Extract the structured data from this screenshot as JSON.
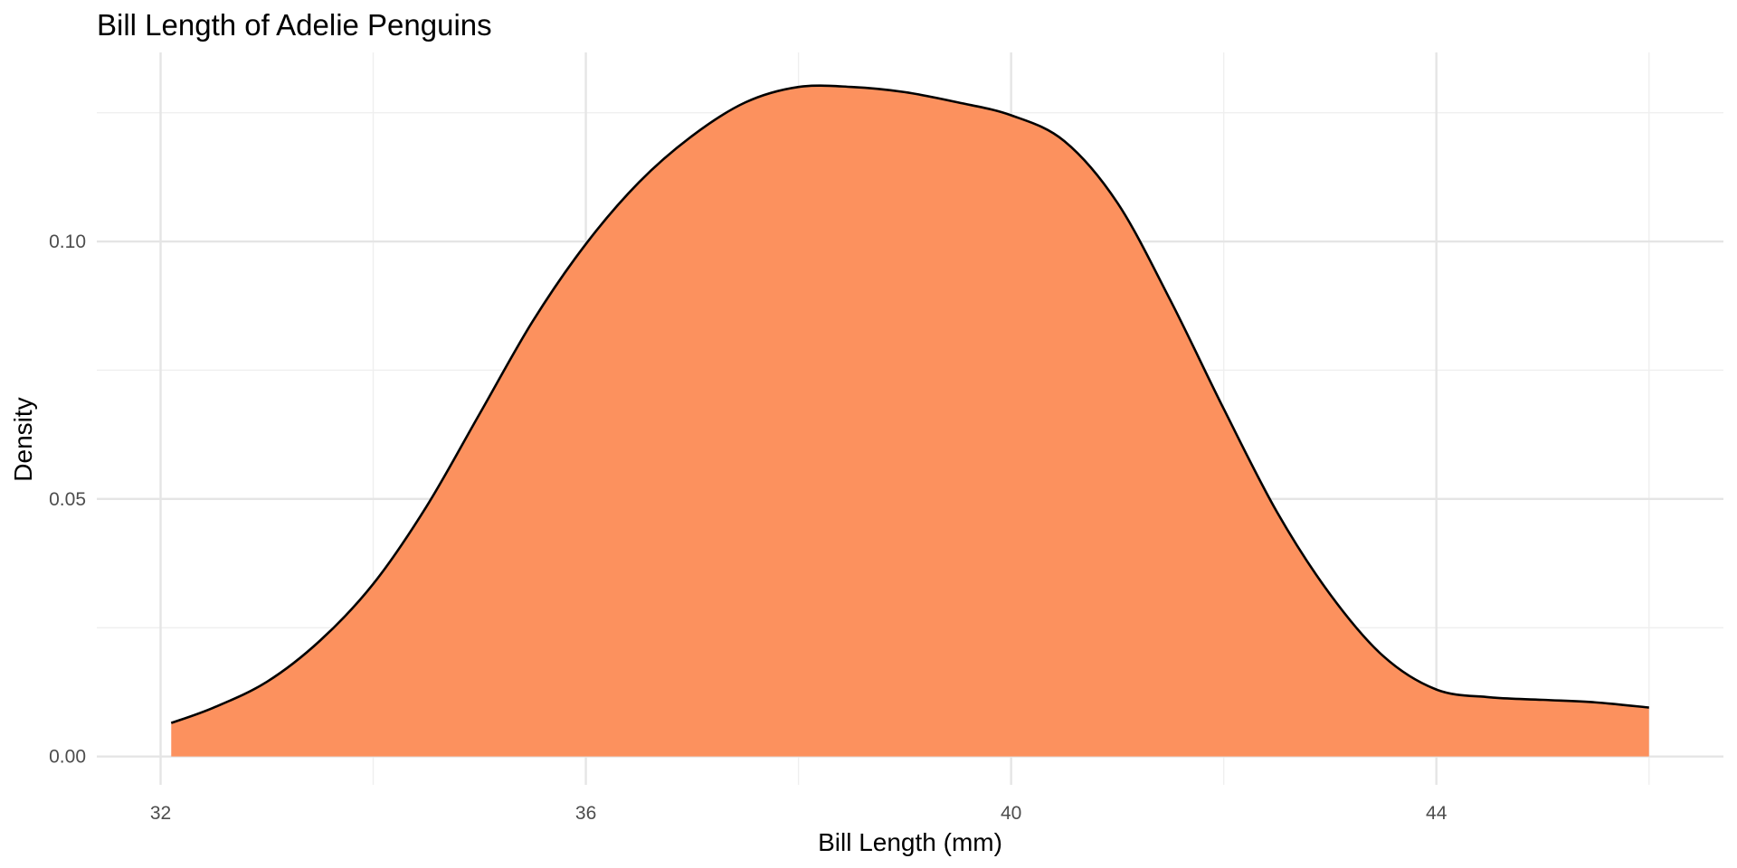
{
  "chart_data": {
    "type": "area",
    "title": "Bill Length of Adelie Penguins",
    "xlabel": "Bill Length (mm)",
    "ylabel": "Density",
    "xlim": [
      31.4,
      46.7
    ],
    "ylim": [
      -0.0055,
      0.1367
    ],
    "x_ticks": [
      32,
      36,
      40,
      44
    ],
    "x_tick_labels": [
      "32",
      "36",
      "40",
      "44"
    ],
    "x_minor_ticks": [
      34,
      38,
      42,
      46
    ],
    "y_ticks": [
      0.0,
      0.05,
      0.1
    ],
    "y_tick_labels": [
      "0.00",
      "0.05",
      "0.10"
    ],
    "y_minor_ticks": [
      0.025,
      0.075,
      0.125
    ],
    "grid": true,
    "fill_color": "#FC8D59",
    "line_color": "#000000",
    "series": [
      {
        "x": [
          32.1,
          32.5,
          33.0,
          33.5,
          34.0,
          34.5,
          35.0,
          35.5,
          36.0,
          36.5,
          37.0,
          37.5,
          38.0,
          38.5,
          39.0,
          39.5,
          40.0,
          40.5,
          41.0,
          41.5,
          42.0,
          42.5,
          43.0,
          43.5,
          44.0,
          44.5,
          45.0,
          45.5,
          46.0
        ],
        "y": [
          0.0065,
          0.0095,
          0.0145,
          0.0225,
          0.0335,
          0.0485,
          0.0665,
          0.0845,
          0.0995,
          0.1115,
          0.1205,
          0.127,
          0.13,
          0.13,
          0.129,
          0.127,
          0.1245,
          0.1195,
          0.1075,
          0.0885,
          0.0675,
          0.0475,
          0.0315,
          0.0195,
          0.013,
          0.0115,
          0.011,
          0.0105,
          0.0095
        ]
      }
    ]
  }
}
